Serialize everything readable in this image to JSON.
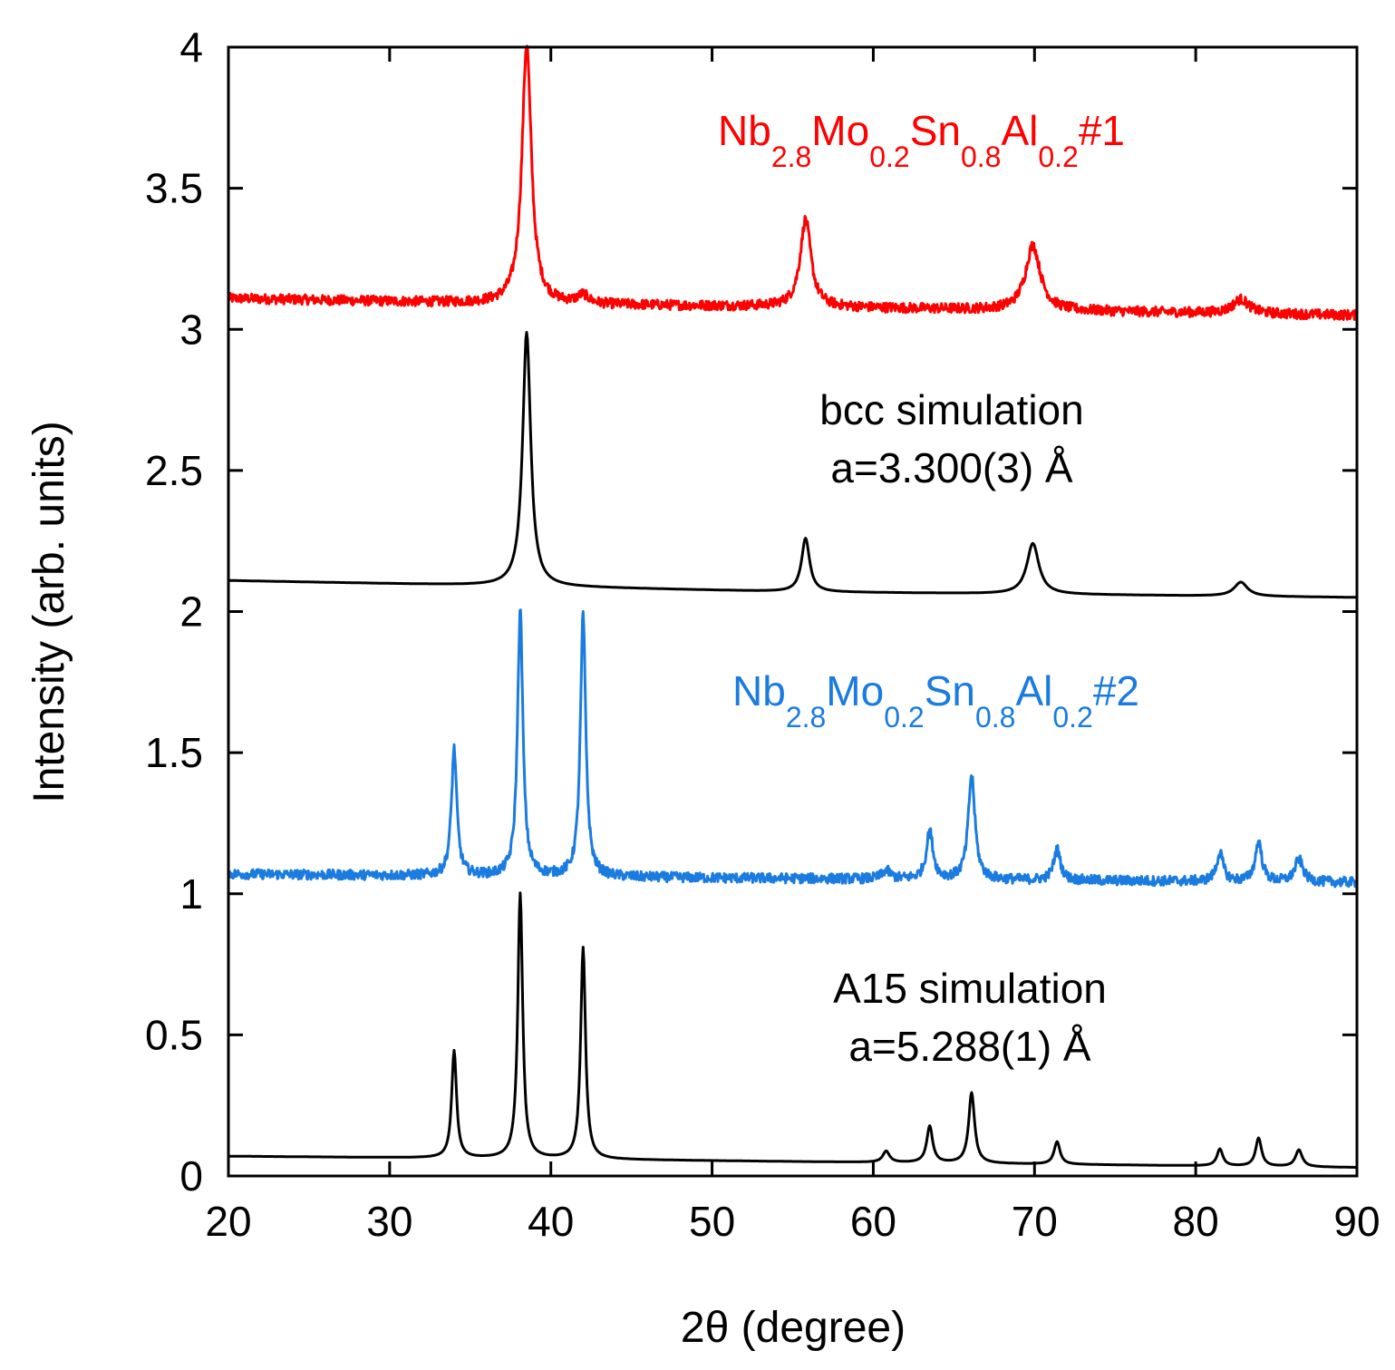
{
  "chart_data": {
    "type": "line",
    "title": "",
    "xlabel": "2θ (degree)",
    "ylabel": "Intensity (arb. units)",
    "xlim": [
      20,
      90
    ],
    "ylim": [
      0,
      4
    ],
    "x_ticks": [
      20,
      30,
      40,
      50,
      60,
      70,
      80,
      90
    ],
    "y_ticks": [
      0,
      0.5,
      1,
      1.5,
      2,
      2.5,
      3,
      3.5,
      4
    ],
    "y_tick_labels": [
      "0",
      "0.5",
      "1",
      "1.5",
      "2",
      "2.5",
      "3",
      "3.5",
      "4"
    ],
    "grid": false,
    "series": [
      {
        "name": "Nb2.8Mo0.2Sn0.8Al0.2#1",
        "color": "#ff0000",
        "noisy": true,
        "baseline": [
          [
            20,
            3.11
          ],
          [
            38,
            3.09
          ],
          [
            55,
            3.08
          ],
          [
            90,
            3.05
          ]
        ],
        "peaks": [
          [
            38.5,
            0.92,
            0.35
          ],
          [
            42.0,
            0.03,
            0.4
          ],
          [
            55.8,
            0.31,
            0.4
          ],
          [
            69.9,
            0.23,
            0.55
          ],
          [
            82.8,
            0.05,
            0.6
          ]
        ]
      },
      {
        "name": "bcc simulation",
        "color": "#000000",
        "noisy": false,
        "baseline": [
          [
            20,
            2.11
          ],
          [
            38,
            2.09
          ],
          [
            55,
            2.07
          ],
          [
            90,
            2.05
          ]
        ],
        "peaks": [
          [
            38.5,
            0.9,
            0.3
          ],
          [
            55.8,
            0.19,
            0.3
          ],
          [
            69.9,
            0.18,
            0.45
          ],
          [
            82.8,
            0.05,
            0.5
          ]
        ]
      },
      {
        "name": "Nb2.8Mo0.2Sn0.8Al0.2#2",
        "color": "#1a7be0",
        "noisy": true,
        "baseline": [
          [
            20,
            1.07
          ],
          [
            40,
            1.06
          ],
          [
            90,
            1.04
          ]
        ],
        "peaks": [
          [
            34.0,
            0.45,
            0.2
          ],
          [
            38.1,
            0.94,
            0.2
          ],
          [
            42.0,
            0.93,
            0.2
          ],
          [
            60.8,
            0.03,
            0.3
          ],
          [
            63.5,
            0.17,
            0.25
          ],
          [
            66.1,
            0.37,
            0.25
          ],
          [
            71.4,
            0.11,
            0.25
          ],
          [
            81.5,
            0.1,
            0.25
          ],
          [
            83.9,
            0.14,
            0.25
          ],
          [
            86.4,
            0.08,
            0.3
          ]
        ]
      },
      {
        "name": "A15 simulation",
        "color": "#000000",
        "noisy": false,
        "baseline": [
          [
            20,
            0.07
          ],
          [
            40,
            0.06
          ],
          [
            90,
            0.03
          ]
        ],
        "peaks": [
          [
            34.0,
            0.38,
            0.18
          ],
          [
            38.1,
            0.94,
            0.18
          ],
          [
            42.0,
            0.75,
            0.18
          ],
          [
            60.8,
            0.04,
            0.25
          ],
          [
            63.5,
            0.13,
            0.22
          ],
          [
            66.1,
            0.25,
            0.22
          ],
          [
            71.4,
            0.08,
            0.22
          ],
          [
            81.5,
            0.06,
            0.22
          ],
          [
            83.9,
            0.1,
            0.22
          ],
          [
            86.4,
            0.06,
            0.25
          ]
        ]
      }
    ],
    "annotations": [
      {
        "name": "label-series-1",
        "color": "#ff0000",
        "parts": [
          [
            "Nb",
            ""
          ],
          [
            "2.8",
            "sub"
          ],
          [
            "Mo",
            ""
          ],
          [
            "0.2",
            "sub"
          ],
          [
            "Sn",
            ""
          ],
          [
            "0.8",
            "sub"
          ],
          [
            "Al",
            ""
          ],
          [
            "0.2",
            "sub"
          ],
          [
            "#1",
            ""
          ]
        ]
      },
      {
        "name": "label-bcc-simulation",
        "color": "#000000",
        "lines": [
          "bcc simulation",
          "a=3.300(3) Å"
        ]
      },
      {
        "name": "label-series-2",
        "color": "#1a7be0",
        "parts": [
          [
            "Nb",
            ""
          ],
          [
            "2.8",
            "sub"
          ],
          [
            "Mo",
            ""
          ],
          [
            "0.2",
            "sub"
          ],
          [
            "Sn",
            ""
          ],
          [
            "0.8",
            "sub"
          ],
          [
            "Al",
            ""
          ],
          [
            "0.2",
            "sub"
          ],
          [
            "#2",
            ""
          ]
        ]
      },
      {
        "name": "label-a15-simulation",
        "color": "#000000",
        "lines": [
          "A15 simulation",
          "a=5.288(1) Å"
        ]
      }
    ]
  }
}
